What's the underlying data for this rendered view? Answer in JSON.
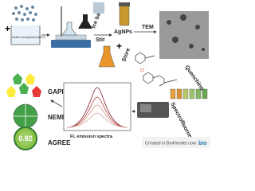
{
  "nodes": [
    {
      "label": "Sodium borohydride (NaBH4)"
    },
    {
      "label": "Ice bath"
    },
    {
      "label": "Stir"
    },
    {
      "label": "AgNPs"
    },
    {
      "label": "TEM"
    },
    {
      "label": "Store"
    },
    {
      "label": "Quenching"
    },
    {
      "label": "Spectrofluorimetry"
    },
    {
      "label": "FL emission spectra"
    },
    {
      "label": "GAPI"
    },
    {
      "label": "NEMI"
    },
    {
      "label": "AGREE"
    },
    {
      "label": "0.82"
    }
  ],
  "footer": {
    "text": "Created in BioRender.com",
    "logo": "bio"
  }
}
